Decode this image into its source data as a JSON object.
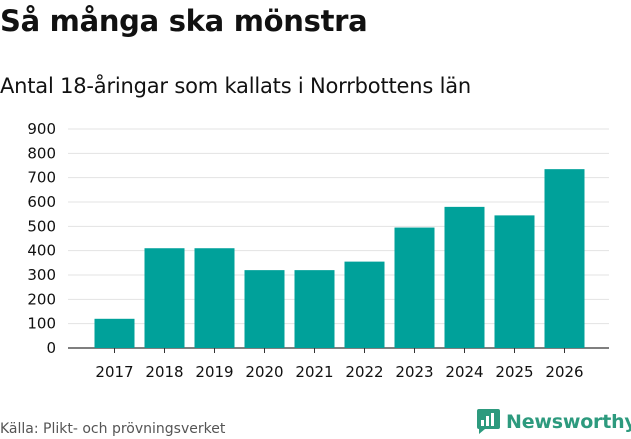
{
  "header": {
    "title": "Så många ska mönstra",
    "subtitle": "Antal 18-åringar som kallats i Norrbottens län"
  },
  "footer": {
    "source": "Källa: Plikt- och prövningsverket",
    "brand": "Newsworthy"
  },
  "colors": {
    "bar": "#00a19a",
    "brand": "#2d9a7e"
  },
  "chart_data": {
    "type": "bar",
    "title": "Så många ska mönstra",
    "subtitle": "Antal 18-åringar som kallats i Norrbottens län",
    "xlabel": "",
    "ylabel": "",
    "categories": [
      "2017",
      "2018",
      "2019",
      "2020",
      "2021",
      "2022",
      "2023",
      "2024",
      "2025",
      "2026"
    ],
    "values": [
      120,
      410,
      410,
      320,
      320,
      355,
      495,
      580,
      545,
      735
    ],
    "ylim": [
      0,
      900
    ],
    "yticks": [
      0,
      100,
      200,
      300,
      400,
      500,
      600,
      700,
      800,
      900
    ],
    "grid": true
  }
}
